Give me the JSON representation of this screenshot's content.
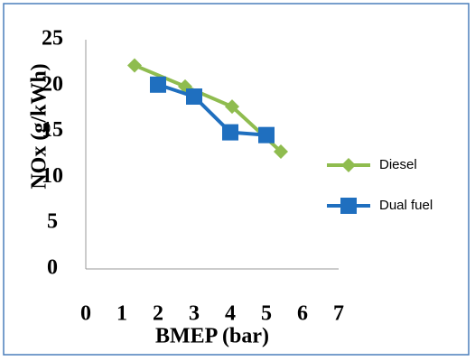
{
  "chart_data": {
    "type": "line",
    "x_label": "BMEP (bar)",
    "y_label": "NOx (g/kWh)",
    "xlim": [
      0,
      7
    ],
    "xticks": [
      0,
      1,
      2,
      3,
      4,
      5,
      6,
      7
    ],
    "ylim": [
      0,
      25
    ],
    "yticks": [
      0,
      5,
      10,
      15,
      20,
      25
    ],
    "grid": false,
    "legend": "right",
    "series": [
      {
        "name": "Diesel",
        "color": "#8fbc4f",
        "marker": "diamond",
        "x": [
          1.35,
          2.75,
          4.05,
          5.4
        ],
        "values": [
          22.2,
          19.9,
          17.7,
          12.8
        ]
      },
      {
        "name": "Dual fuel",
        "color": "#1f6fbf",
        "marker": "square",
        "x": [
          2,
          3,
          4,
          5
        ],
        "values": [
          20.1,
          18.8,
          14.9,
          14.6
        ]
      }
    ]
  }
}
